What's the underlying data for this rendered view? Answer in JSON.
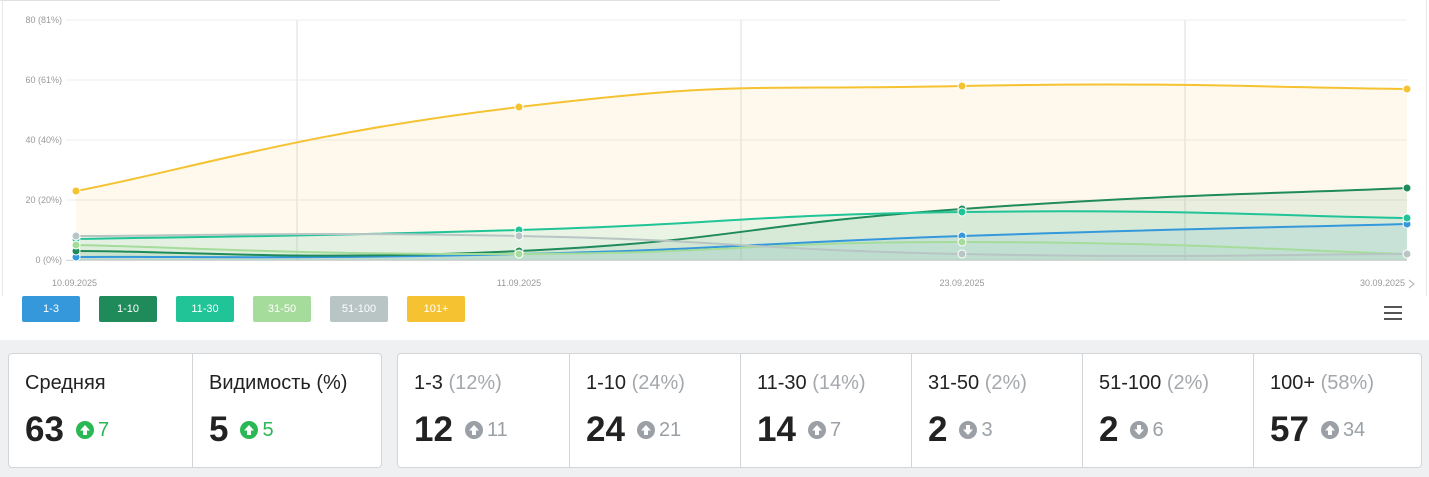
{
  "chart_data": {
    "type": "area",
    "x": [
      "10.09.2025",
      "11.09.2025",
      "23.09.2025",
      "30.09.2025"
    ],
    "y_ticks": [
      "0 (0%)",
      "20 (20%)",
      "40 (40%)",
      "60 (61%)",
      "80 (81%)"
    ],
    "ylim": [
      0,
      80
    ],
    "grid": true,
    "series": [
      {
        "name": "1-3",
        "color": "#3498db",
        "values": [
          1,
          2,
          8,
          12
        ]
      },
      {
        "name": "1-10",
        "color": "#1f8a5a",
        "values": [
          3,
          3,
          17,
          24
        ]
      },
      {
        "name": "11-30",
        "color": "#20c497",
        "values": [
          7,
          10,
          16,
          14
        ]
      },
      {
        "name": "31-50",
        "color": "#a6dc9b",
        "values": [
          5,
          2,
          6,
          2
        ]
      },
      {
        "name": "51-100",
        "color": "#b8c5c4",
        "values": [
          8,
          8,
          2,
          2
        ]
      },
      {
        "name": "101+",
        "color": "#f5c231",
        "values": [
          23,
          51,
          58,
          57
        ]
      }
    ]
  },
  "legend": {
    "items": [
      {
        "label": "1-3",
        "color": "#3498db"
      },
      {
        "label": "1-10",
        "color": "#1f8a5a"
      },
      {
        "label": "11-30",
        "color": "#20c497"
      },
      {
        "label": "31-50",
        "color": "#a6dc9b"
      },
      {
        "label": "51-100",
        "color": "#b8c5c4"
      },
      {
        "label": "101+",
        "color": "#f5c231"
      }
    ]
  },
  "menu_icon": "hamburger-menu-icon",
  "summary": {
    "average": {
      "title": "Средняя",
      "value": "63",
      "change": "7",
      "direction": "up"
    },
    "visibility": {
      "title": "Видимость (%)",
      "value": "5",
      "change": "5",
      "direction": "up"
    }
  },
  "ranges": [
    {
      "title": "1-3",
      "pct": "(12%)",
      "value": "12",
      "change": "11",
      "direction": "up"
    },
    {
      "title": "1-10",
      "pct": "(24%)",
      "value": "24",
      "change": "21",
      "direction": "up"
    },
    {
      "title": "11-30",
      "pct": "(14%)",
      "value": "14",
      "change": "7",
      "direction": "up"
    },
    {
      "title": "31-50",
      "pct": "(2%)",
      "value": "2",
      "change": "3",
      "direction": "down"
    },
    {
      "title": "51-100",
      "pct": "(2%)",
      "value": "2",
      "change": "6",
      "direction": "down"
    },
    {
      "title": "100+",
      "pct": "(58%)",
      "value": "57",
      "change": "34",
      "direction": "up"
    }
  ]
}
